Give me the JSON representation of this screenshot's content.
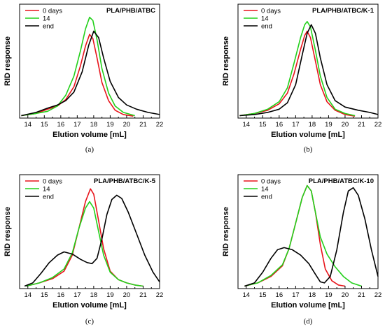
{
  "chart_data": [
    {
      "type": "line",
      "title": "PLA/PHB/ATBC",
      "caption": "(a)",
      "xlabel": "Elution volume [mL]",
      "ylabel": "RID response",
      "xlim": [
        13.5,
        22
      ],
      "xticks": [
        14,
        15,
        16,
        17,
        18,
        19,
        20,
        21,
        22
      ],
      "legend_position": "top-left",
      "series": [
        {
          "name": "0 days",
          "color": "#e8141b",
          "points": [
            [
              13.6,
              0.01
            ],
            [
              14.5,
              0.03
            ],
            [
              15.2,
              0.07
            ],
            [
              15.8,
              0.1
            ],
            [
              16.3,
              0.16
            ],
            [
              16.8,
              0.28
            ],
            [
              17.2,
              0.48
            ],
            [
              17.5,
              0.66
            ],
            [
              17.75,
              0.77
            ],
            [
              17.95,
              0.73
            ],
            [
              18.2,
              0.55
            ],
            [
              18.5,
              0.32
            ],
            [
              18.9,
              0.15
            ],
            [
              19.3,
              0.06
            ],
            [
              19.8,
              0.02
            ],
            [
              20.4,
              0.005
            ]
          ]
        },
        {
          "name": "14",
          "color": "#22d01a",
          "points": [
            [
              13.6,
              0.01
            ],
            [
              14.5,
              0.03
            ],
            [
              15.2,
              0.05
            ],
            [
              15.8,
              0.1
            ],
            [
              16.3,
              0.2
            ],
            [
              16.8,
              0.38
            ],
            [
              17.2,
              0.62
            ],
            [
              17.5,
              0.82
            ],
            [
              17.75,
              0.93
            ],
            [
              17.95,
              0.9
            ],
            [
              18.2,
              0.72
            ],
            [
              18.5,
              0.45
            ],
            [
              18.9,
              0.22
            ],
            [
              19.3,
              0.1
            ],
            [
              19.8,
              0.04
            ],
            [
              20.5,
              0.01
            ]
          ]
        },
        {
          "name": "end",
          "color": "#000000",
          "points": [
            [
              13.6,
              0.01
            ],
            [
              14.5,
              0.04
            ],
            [
              15.2,
              0.08
            ],
            [
              15.8,
              0.11
            ],
            [
              16.3,
              0.15
            ],
            [
              16.8,
              0.23
            ],
            [
              17.3,
              0.42
            ],
            [
              17.7,
              0.67
            ],
            [
              18.0,
              0.8
            ],
            [
              18.3,
              0.74
            ],
            [
              18.6,
              0.55
            ],
            [
              19.0,
              0.33
            ],
            [
              19.5,
              0.18
            ],
            [
              20.0,
              0.11
            ],
            [
              20.6,
              0.07
            ],
            [
              21.3,
              0.04
            ],
            [
              22,
              0.02
            ]
          ]
        }
      ]
    },
    {
      "type": "line",
      "title": "PLA/PHB/ATBC/K-1",
      "caption": "(b)",
      "xlabel": "Elution volume [mL]",
      "ylabel": "RID response",
      "xlim": [
        13.5,
        22
      ],
      "xticks": [
        14,
        15,
        16,
        17,
        18,
        19,
        20,
        21,
        22
      ],
      "legend_position": "top-left",
      "series": [
        {
          "name": "0 days",
          "color": "#e8141b",
          "points": [
            [
              13.6,
              0.01
            ],
            [
              14.5,
              0.03
            ],
            [
              15.3,
              0.06
            ],
            [
              16.0,
              0.12
            ],
            [
              16.5,
              0.22
            ],
            [
              16.9,
              0.4
            ],
            [
              17.3,
              0.63
            ],
            [
              17.55,
              0.76
            ],
            [
              17.7,
              0.8
            ],
            [
              17.9,
              0.74
            ],
            [
              18.2,
              0.52
            ],
            [
              18.5,
              0.3
            ],
            [
              18.9,
              0.14
            ],
            [
              19.4,
              0.06
            ],
            [
              20.0,
              0.02
            ],
            [
              20.6,
              0.005
            ]
          ]
        },
        {
          "name": "14",
          "color": "#22d01a",
          "points": [
            [
              13.6,
              0.01
            ],
            [
              14.5,
              0.03
            ],
            [
              15.3,
              0.07
            ],
            [
              16.0,
              0.14
            ],
            [
              16.5,
              0.27
            ],
            [
              16.9,
              0.5
            ],
            [
              17.3,
              0.74
            ],
            [
              17.55,
              0.86
            ],
            [
              17.7,
              0.89
            ],
            [
              17.9,
              0.84
            ],
            [
              18.2,
              0.62
            ],
            [
              18.5,
              0.38
            ],
            [
              18.9,
              0.18
            ],
            [
              19.4,
              0.07
            ],
            [
              20.0,
              0.03
            ],
            [
              20.6,
              0.01
            ]
          ]
        },
        {
          "name": "end",
          "color": "#000000",
          "points": [
            [
              13.6,
              0.01
            ],
            [
              14.5,
              0.02
            ],
            [
              15.3,
              0.04
            ],
            [
              16.0,
              0.07
            ],
            [
              16.5,
              0.13
            ],
            [
              17.0,
              0.3
            ],
            [
              17.4,
              0.58
            ],
            [
              17.7,
              0.78
            ],
            [
              17.95,
              0.86
            ],
            [
              18.2,
              0.78
            ],
            [
              18.5,
              0.55
            ],
            [
              18.9,
              0.3
            ],
            [
              19.4,
              0.15
            ],
            [
              20.0,
              0.09
            ],
            [
              20.8,
              0.06
            ],
            [
              21.5,
              0.04
            ],
            [
              22,
              0.02
            ]
          ]
        }
      ]
    },
    {
      "type": "line",
      "title": "PLA/PHB/ATBC/K-5",
      "caption": "(c)",
      "xlabel": "Elution volume [mL]",
      "ylabel": "RID response",
      "xlim": [
        13.5,
        22
      ],
      "xticks": [
        14,
        15,
        16,
        17,
        18,
        19,
        20,
        21,
        22
      ],
      "legend_position": "top-left",
      "series": [
        {
          "name": "0 days",
          "color": "#e8141b",
          "points": [
            [
              13.9,
              0.01
            ],
            [
              14.7,
              0.04
            ],
            [
              15.5,
              0.08
            ],
            [
              16.2,
              0.15
            ],
            [
              16.7,
              0.3
            ],
            [
              17.1,
              0.55
            ],
            [
              17.5,
              0.8
            ],
            [
              17.8,
              0.92
            ],
            [
              18.0,
              0.87
            ],
            [
              18.3,
              0.62
            ],
            [
              18.6,
              0.36
            ],
            [
              19.0,
              0.15
            ],
            [
              19.5,
              0.07
            ],
            [
              20.0,
              0.04
            ],
            [
              20.5,
              0.02
            ],
            [
              21.0,
              0.01
            ]
          ]
        },
        {
          "name": "14",
          "color": "#22d01a",
          "points": [
            [
              13.9,
              0.01
            ],
            [
              14.7,
              0.04
            ],
            [
              15.5,
              0.09
            ],
            [
              16.2,
              0.17
            ],
            [
              16.7,
              0.32
            ],
            [
              17.1,
              0.55
            ],
            [
              17.5,
              0.74
            ],
            [
              17.75,
              0.8
            ],
            [
              18.0,
              0.74
            ],
            [
              18.3,
              0.52
            ],
            [
              18.6,
              0.3
            ],
            [
              19.0,
              0.14
            ],
            [
              19.5,
              0.07
            ],
            [
              20.0,
              0.04
            ],
            [
              20.5,
              0.02
            ],
            [
              21.0,
              0.01
            ]
          ]
        },
        {
          "name": "end",
          "color": "#000000",
          "points": [
            [
              13.8,
              0.01
            ],
            [
              14.3,
              0.04
            ],
            [
              14.8,
              0.13
            ],
            [
              15.3,
              0.23
            ],
            [
              15.8,
              0.3
            ],
            [
              16.2,
              0.33
            ],
            [
              16.7,
              0.31
            ],
            [
              17.2,
              0.26
            ],
            [
              17.6,
              0.23
            ],
            [
              17.9,
              0.22
            ],
            [
              18.2,
              0.27
            ],
            [
              18.5,
              0.45
            ],
            [
              18.8,
              0.68
            ],
            [
              19.1,
              0.82
            ],
            [
              19.4,
              0.86
            ],
            [
              19.7,
              0.83
            ],
            [
              20.1,
              0.7
            ],
            [
              20.6,
              0.5
            ],
            [
              21.1,
              0.3
            ],
            [
              21.6,
              0.14
            ],
            [
              22,
              0.05
            ]
          ]
        }
      ]
    },
    {
      "type": "line",
      "title": "PLA/PHB/ATBC/K-10",
      "caption": "(d)",
      "xlabel": "Elution volume [mL]",
      "ylabel": "RID response",
      "xlim": [
        13.5,
        22
      ],
      "xticks": [
        14,
        15,
        16,
        17,
        18,
        19,
        20,
        21,
        22
      ],
      "legend_position": "top-left",
      "series": [
        {
          "name": "0 days",
          "color": "#e8141b",
          "points": [
            [
              13.9,
              0.01
            ],
            [
              14.7,
              0.04
            ],
            [
              15.5,
              0.1
            ],
            [
              16.2,
              0.2
            ],
            [
              16.6,
              0.36
            ],
            [
              17.0,
              0.6
            ],
            [
              17.4,
              0.84
            ],
            [
              17.7,
              0.95
            ],
            [
              17.95,
              0.9
            ],
            [
              18.2,
              0.7
            ],
            [
              18.5,
              0.4
            ],
            [
              18.8,
              0.17
            ],
            [
              19.2,
              0.06
            ],
            [
              19.6,
              0.02
            ],
            [
              20.0,
              0.01
            ]
          ]
        },
        {
          "name": "14",
          "color": "#22d01a",
          "points": [
            [
              13.9,
              0.01
            ],
            [
              14.7,
              0.04
            ],
            [
              15.5,
              0.11
            ],
            [
              16.2,
              0.21
            ],
            [
              16.6,
              0.36
            ],
            [
              17.0,
              0.6
            ],
            [
              17.4,
              0.84
            ],
            [
              17.7,
              0.95
            ],
            [
              17.95,
              0.9
            ],
            [
              18.2,
              0.7
            ],
            [
              18.5,
              0.47
            ],
            [
              18.9,
              0.31
            ],
            [
              19.4,
              0.19
            ],
            [
              19.9,
              0.1
            ],
            [
              20.4,
              0.04
            ],
            [
              21.0,
              0.01
            ]
          ]
        },
        {
          "name": "end",
          "color": "#000000",
          "points": [
            [
              13.9,
              0.01
            ],
            [
              14.5,
              0.04
            ],
            [
              15.0,
              0.14
            ],
            [
              15.5,
              0.27
            ],
            [
              15.9,
              0.35
            ],
            [
              16.3,
              0.37
            ],
            [
              16.8,
              0.35
            ],
            [
              17.3,
              0.3
            ],
            [
              17.8,
              0.22
            ],
            [
              18.2,
              0.12
            ],
            [
              18.5,
              0.05
            ],
            [
              18.75,
              0.04
            ],
            [
              19.1,
              0.1
            ],
            [
              19.5,
              0.35
            ],
            [
              19.9,
              0.7
            ],
            [
              20.2,
              0.9
            ],
            [
              20.5,
              0.93
            ],
            [
              20.8,
              0.86
            ],
            [
              21.2,
              0.64
            ],
            [
              21.6,
              0.35
            ],
            [
              22,
              0.1
            ]
          ]
        }
      ]
    }
  ]
}
